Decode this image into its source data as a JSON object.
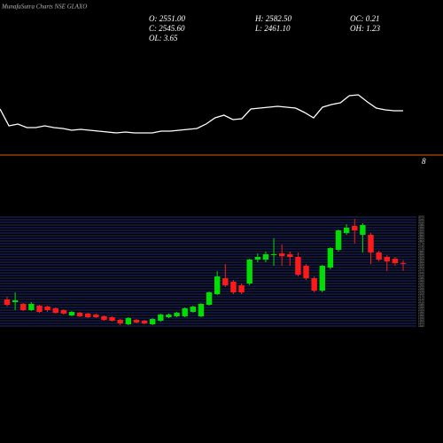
{
  "chart_data": [
    {
      "type": "candlestick",
      "title": "MunafaSutra Charts NSE GLAXO",
      "stats": [
        "O: 2551.00",
        "H: 2582.50",
        "OC: 0.21",
        "C: 2545.60",
        "L: 2461.10",
        "OH: 1.23",
        "OL: 3.65"
      ],
      "up_color": "#00dd00",
      "down_color": "#ff1a1a",
      "grid_color": "#2a3a9a",
      "ylim": [
        1820,
        3120
      ],
      "yticks": [
        1840,
        1870,
        1900,
        1930,
        1960,
        1990,
        2020,
        2050,
        2080,
        2110,
        2140,
        2170,
        2200,
        2230,
        2260,
        2290,
        2320,
        2350,
        2380,
        2410,
        2440,
        2470,
        2500,
        2530,
        2560,
        2590,
        2620,
        2650,
        2680,
        2710,
        2740,
        2770,
        2800,
        2830,
        2860,
        2890,
        2920,
        2950,
        2980,
        3010,
        3040,
        3070
      ],
      "open": [
        2140,
        2110,
        2090,
        2020,
        2070,
        2060,
        2040,
        2020,
        1960,
        1990,
        1980,
        1970,
        1950,
        1940,
        1910,
        1860,
        1910,
        1900,
        1860,
        1900,
        1940,
        1950,
        1950,
        2000,
        1950,
        2080,
        2200,
        2380,
        2340,
        2300,
        2320,
        2590,
        2590,
        2640,
        2660,
        2650,
        2620,
        2520,
        2380,
        2240,
        2500,
        2700,
        2890,
        2970,
        2870,
        2870,
        2670,
        2620,
        2600,
        2551
      ],
      "high": [
        2170,
        2220,
        2100,
        2110,
        2080,
        2070,
        2050,
        2030,
        2010,
        2000,
        1990,
        1980,
        1960,
        1950,
        1920,
        1940,
        1920,
        1910,
        1930,
        1980,
        1980,
        2000,
        2050,
        2070,
        2100,
        2230,
        2460,
        2540,
        2360,
        2320,
        2600,
        2660,
        2680,
        2830,
        2760,
        2680,
        2670,
        2540,
        2400,
        2530,
        2730,
        2930,
        2990,
        3050,
        3000,
        2890,
        2690,
        2640,
        2620,
        2582.5
      ],
      "low": [
        2060,
        2020,
        2010,
        2010,
        1990,
        2000,
        1980,
        1970,
        1950,
        1940,
        1930,
        1930,
        1900,
        1890,
        1850,
        1850,
        1870,
        1860,
        1850,
        1890,
        1930,
        1940,
        1940,
        1990,
        1940,
        2070,
        2190,
        2280,
        2200,
        2200,
        2300,
        2560,
        2560,
        2520,
        2520,
        2520,
        2400,
        2360,
        2220,
        2220,
        2480,
        2680,
        2870,
        2770,
        2670,
        2540,
        2570,
        2460,
        2520,
        2461.1
      ],
      "close": [
        2080,
        2130,
        2020,
        2090,
        2000,
        2020,
        1990,
        1980,
        2000,
        1950,
        1940,
        1940,
        1910,
        1900,
        1870,
        1930,
        1880,
        1870,
        1920,
        1970,
        1970,
        1990,
        2040,
        2060,
        2090,
        2220,
        2400,
        2300,
        2220,
        2220,
        2590,
        2620,
        2650,
        2650,
        2630,
        2620,
        2420,
        2380,
        2240,
        2520,
        2720,
        2920,
        2950,
        2920,
        2980,
        2670,
        2590,
        2570,
        2550,
        2545.6
      ]
    },
    {
      "type": "line",
      "color": "#ffffff",
      "ylim": [
        0,
        100
      ],
      "values": [
        60,
        41,
        43,
        39,
        39,
        41,
        39,
        38,
        36,
        37,
        36,
        35,
        34,
        33,
        34,
        33,
        33,
        33,
        35,
        35,
        36,
        37,
        38,
        43,
        50,
        53,
        48,
        49,
        60,
        61,
        62,
        63,
        62,
        61,
        56,
        50,
        62,
        65,
        67,
        75,
        76,
        68,
        61,
        59,
        58,
        58
      ],
      "hline": {
        "value": 8,
        "label": "8",
        "color": "#e06010"
      }
    }
  ]
}
